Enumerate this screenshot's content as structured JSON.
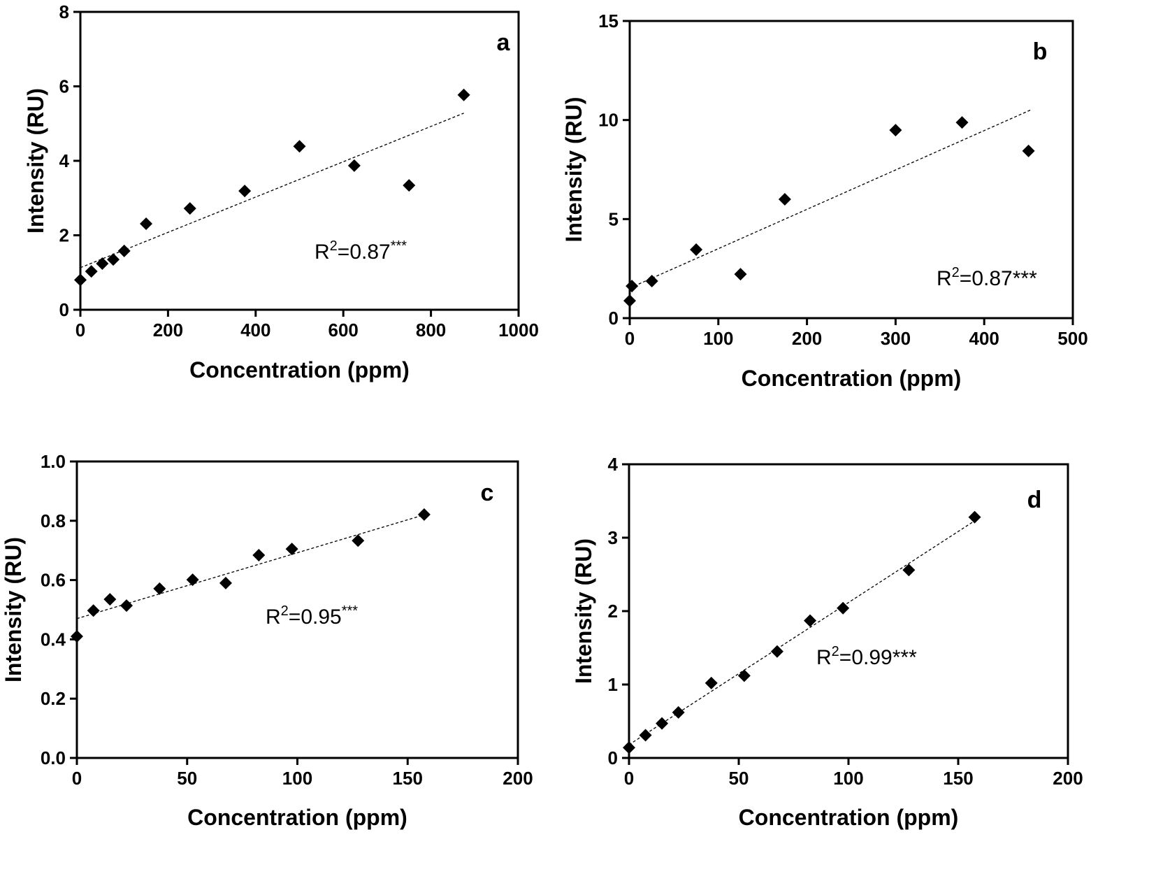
{
  "chart_data": [
    {
      "type": "scatter",
      "panel_label": "a",
      "xlabel": "Concentration (ppm)",
      "ylabel": "Intensity (RU)",
      "xlim": [
        0,
        1000
      ],
      "ylim": [
        0,
        8
      ],
      "xticks": [
        0,
        200,
        400,
        600,
        800,
        1000
      ],
      "yticks": [
        0,
        2,
        4,
        6,
        8
      ],
      "x": [
        0,
        25,
        50,
        75,
        100,
        150,
        250,
        375,
        500,
        625,
        750,
        875
      ],
      "y": [
        0.8,
        1.03,
        1.24,
        1.35,
        1.58,
        2.31,
        2.72,
        3.19,
        4.39,
        3.87,
        3.34,
        5.77
      ],
      "trendline": {
        "x": [
          0,
          875
        ],
        "y": [
          1.13,
          5.28
        ]
      },
      "annotation": {
        "base": "R",
        "sup": "2",
        "text": "=0.87",
        "stars": "***",
        "stars_superscript": true
      },
      "marker": "diamond",
      "color": "#000000",
      "grid": false
    },
    {
      "type": "scatter",
      "panel_label": "b",
      "xlabel": "Concentration (ppm)",
      "ylabel": "Intensity (RU)",
      "xlim": [
        0,
        500
      ],
      "ylim": [
        0,
        15
      ],
      "xticks": [
        0,
        100,
        200,
        300,
        400,
        500
      ],
      "yticks": [
        0,
        5,
        10,
        15
      ],
      "x": [
        0,
        2.5,
        25,
        75,
        125,
        175,
        300,
        375,
        450
      ],
      "y": [
        0.88,
        1.62,
        1.87,
        3.46,
        2.22,
        6.0,
        9.49,
        9.88,
        8.44
      ],
      "trendline": {
        "x": [
          0,
          452
        ],
        "y": [
          1.52,
          10.5
        ]
      },
      "annotation": {
        "base": "R",
        "sup": "2",
        "text": "=0.87",
        "stars": "***",
        "stars_superscript": false
      },
      "marker": "diamond",
      "color": "#000000",
      "grid": false
    },
    {
      "type": "scatter",
      "panel_label": "c",
      "xlabel": "Concentration (ppm)",
      "ylabel": "Intensity (RU)",
      "xlim": [
        0,
        200
      ],
      "ylim": [
        0,
        1.0
      ],
      "xticks": [
        0,
        50,
        100,
        150,
        200
      ],
      "yticks": [
        0.0,
        0.2,
        0.4,
        0.6,
        0.8,
        1.0
      ],
      "ytick_labels": [
        "0.0",
        "0.2",
        "0.4",
        "0.6",
        "0.8",
        "1.0"
      ],
      "x": [
        0,
        7.5,
        15,
        22.5,
        37.5,
        52.5,
        67.5,
        82.5,
        97.5,
        127.5,
        157.5
      ],
      "y": [
        0.41,
        0.497,
        0.535,
        0.514,
        0.571,
        0.601,
        0.59,
        0.684,
        0.705,
        0.733,
        0.821
      ],
      "trendline": {
        "x": [
          0,
          157.5
        ],
        "y": [
          0.47,
          0.82
        ]
      },
      "annotation": {
        "base": "R",
        "sup": "2",
        "text": "=0.95",
        "stars": "***",
        "stars_superscript": true
      },
      "marker": "diamond",
      "color": "#000000",
      "grid": false
    },
    {
      "type": "scatter",
      "panel_label": "d",
      "xlabel": "Concentration (ppm)",
      "ylabel": "Intensity (RU)",
      "xlim": [
        0,
        200
      ],
      "ylim": [
        0,
        4
      ],
      "xticks": [
        0,
        50,
        100,
        150,
        200
      ],
      "yticks": [
        0,
        1,
        2,
        3,
        4
      ],
      "x": [
        0,
        7.5,
        15,
        22.5,
        37.5,
        52.5,
        67.5,
        82.5,
        97.5,
        127.5,
        157.5
      ],
      "y": [
        0.14,
        0.31,
        0.47,
        0.62,
        1.02,
        1.12,
        1.45,
        1.87,
        2.04,
        2.56,
        3.28
      ],
      "trendline": {
        "x": [
          0,
          157.5
        ],
        "y": [
          0.18,
          3.23
        ]
      },
      "annotation": {
        "base": "R",
        "sup": "2",
        "text": "=0.99",
        "stars": "***",
        "stars_superscript": false
      },
      "marker": "diamond",
      "color": "#000000",
      "grid": false
    }
  ]
}
